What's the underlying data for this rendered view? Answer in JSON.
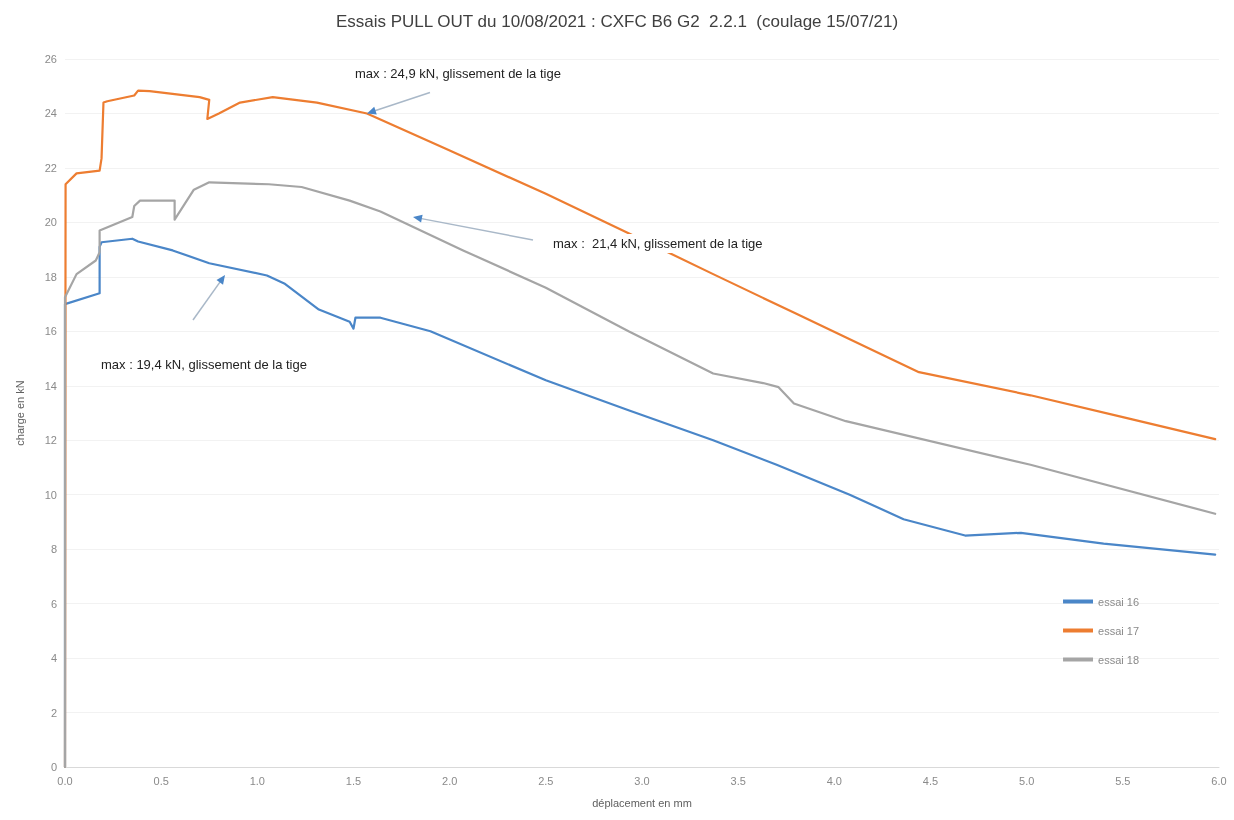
{
  "chart_data": {
    "type": "line",
    "title": "Essais PULL OUT du 10/08/2021 : CXFC B6 G2  2.2.1  (coulage 15/07/21)",
    "xlabel": "déplacement en mm",
    "ylabel": "charge en kN",
    "xlim": [
      0,
      6
    ],
    "xticks": [
      {
        "value": 0,
        "label": "0.0"
      },
      0.5,
      {
        "value": 1,
        "label": "1.0"
      },
      1.5,
      {
        "value": 2,
        "label": "2.0"
      },
      2.5,
      {
        "value": 3,
        "label": "3.0"
      },
      3.5,
      {
        "value": 4,
        "label": "4.0"
      },
      4.5,
      {
        "value": 5,
        "label": "5.0"
      },
      5.5,
      {
        "value": 6,
        "label": "6.0"
      }
    ],
    "ylim": [
      0,
      26
    ],
    "yticks": [
      0,
      2,
      4,
      6,
      8,
      10,
      12,
      14,
      16,
      18,
      20,
      22,
      24,
      26
    ],
    "grid": "y",
    "legend": "bottom right",
    "marker": "none",
    "line_style": "solid",
    "series": [
      {
        "name": "essai 16",
        "color": "#4a86c8",
        "x": [
          0,
          0,
          0.18,
          0.18,
          0.19,
          0.35,
          0.38,
          0.56,
          0.75,
          1.05,
          1.14,
          1.32,
          1.48,
          1.5,
          1.51,
          1.64,
          1.9,
          2.5,
          2.93,
          3.37,
          3.7,
          4.08,
          4.36,
          4.68,
          4.97,
          5.4,
          5.98
        ],
        "values": [
          0,
          17.0,
          17.4,
          19.1,
          19.27,
          19.4,
          19.3,
          18.97,
          18.5,
          18.05,
          17.76,
          16.8,
          16.35,
          16.1,
          16.5,
          16.5,
          16.0,
          14.2,
          13.1,
          12.0,
          11.1,
          10.0,
          9.1,
          8.5,
          8.6,
          8.2,
          7.8
        ]
      },
      {
        "name": "essai 17",
        "color": "#ed7d31",
        "x": [
          0,
          0.003,
          0.06,
          0.18,
          0.19,
          0.2,
          0.22,
          0.36,
          0.38,
          0.44,
          0.7,
          0.75,
          0.74,
          0.8,
          0.91,
          1.08,
          1.31,
          1.57,
          1.98,
          2.5,
          2.93,
          3.37,
          3.8,
          4.23,
          4.44,
          5.02,
          5.5,
          5.98
        ],
        "values": [
          0,
          21.4,
          21.8,
          21.9,
          22.35,
          24.4,
          24.45,
          24.66,
          24.84,
          24.82,
          24.6,
          24.5,
          23.8,
          24.0,
          24.4,
          24.6,
          24.4,
          24.0,
          22.7,
          21.05,
          19.6,
          18.1,
          16.65,
          15.2,
          14.5,
          13.65,
          12.85,
          12.04
        ]
      },
      {
        "name": "essai 18",
        "color": "#a5a5a5",
        "x": [
          0,
          0,
          0.06,
          0.16,
          0.18,
          0.18,
          0.35,
          0.36,
          0.39,
          0.57,
          0.57,
          0.67,
          0.75,
          1.06,
          1.23,
          1.48,
          1.64,
          2.07,
          2.5,
          2.93,
          3.37,
          3.63,
          3.71,
          3.79,
          4.06,
          5.02,
          5.98
        ],
        "values": [
          0,
          17.25,
          18.1,
          18.6,
          18.9,
          19.7,
          20.2,
          20.6,
          20.8,
          20.8,
          20.1,
          21.2,
          21.47,
          21.4,
          21.3,
          20.8,
          20.4,
          18.97,
          17.6,
          16.0,
          14.45,
          14.1,
          13.95,
          13.35,
          12.7,
          11.1,
          9.3
        ]
      }
    ],
    "annotations": [
      {
        "text": "max : 24,9 kN, glissement de la tige",
        "x": 1.57,
        "y": 24.0
      },
      "max :  21,4 kN, glissement de la tige",
      "max : 19,4 kN, glissement de la tige"
    ]
  }
}
